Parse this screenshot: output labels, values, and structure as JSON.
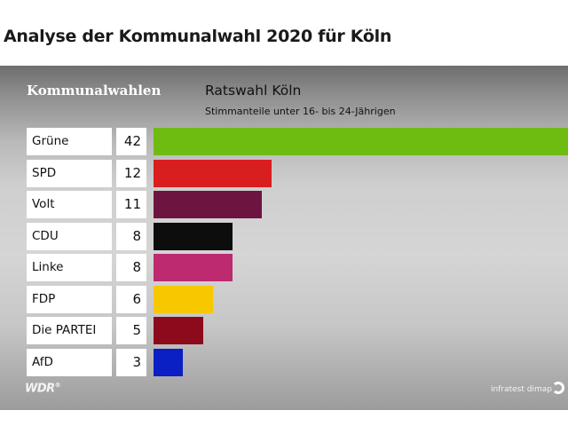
{
  "page": {
    "title": "Analyse der Kommunalwahl 2020 für Köln"
  },
  "graphic": {
    "section_label": "Kommunalwahlen",
    "brand": "WDR",
    "brand_mark": "®",
    "source": "infratest dimap"
  },
  "chart_data": {
    "type": "bar",
    "orientation": "horizontal",
    "title": "Ratswahl Köln",
    "subtitle": "Stimmanteile unter 16- bis 24-Jährigen",
    "categories": [
      "Grüne",
      "SPD",
      "Volt",
      "CDU",
      "Linke",
      "FDP",
      "Die PARTEI",
      "AfD"
    ],
    "values": [
      42,
      12,
      11,
      8,
      8,
      6,
      5,
      3
    ],
    "colors": [
      "#6ebb12",
      "#d81e1e",
      "#6d1540",
      "#0d0d0d",
      "#bd2a70",
      "#f7c700",
      "#8c0a1c",
      "#0a1fc4"
    ],
    "xlim": [
      0,
      42
    ],
    "grid": false,
    "legend": "none"
  }
}
